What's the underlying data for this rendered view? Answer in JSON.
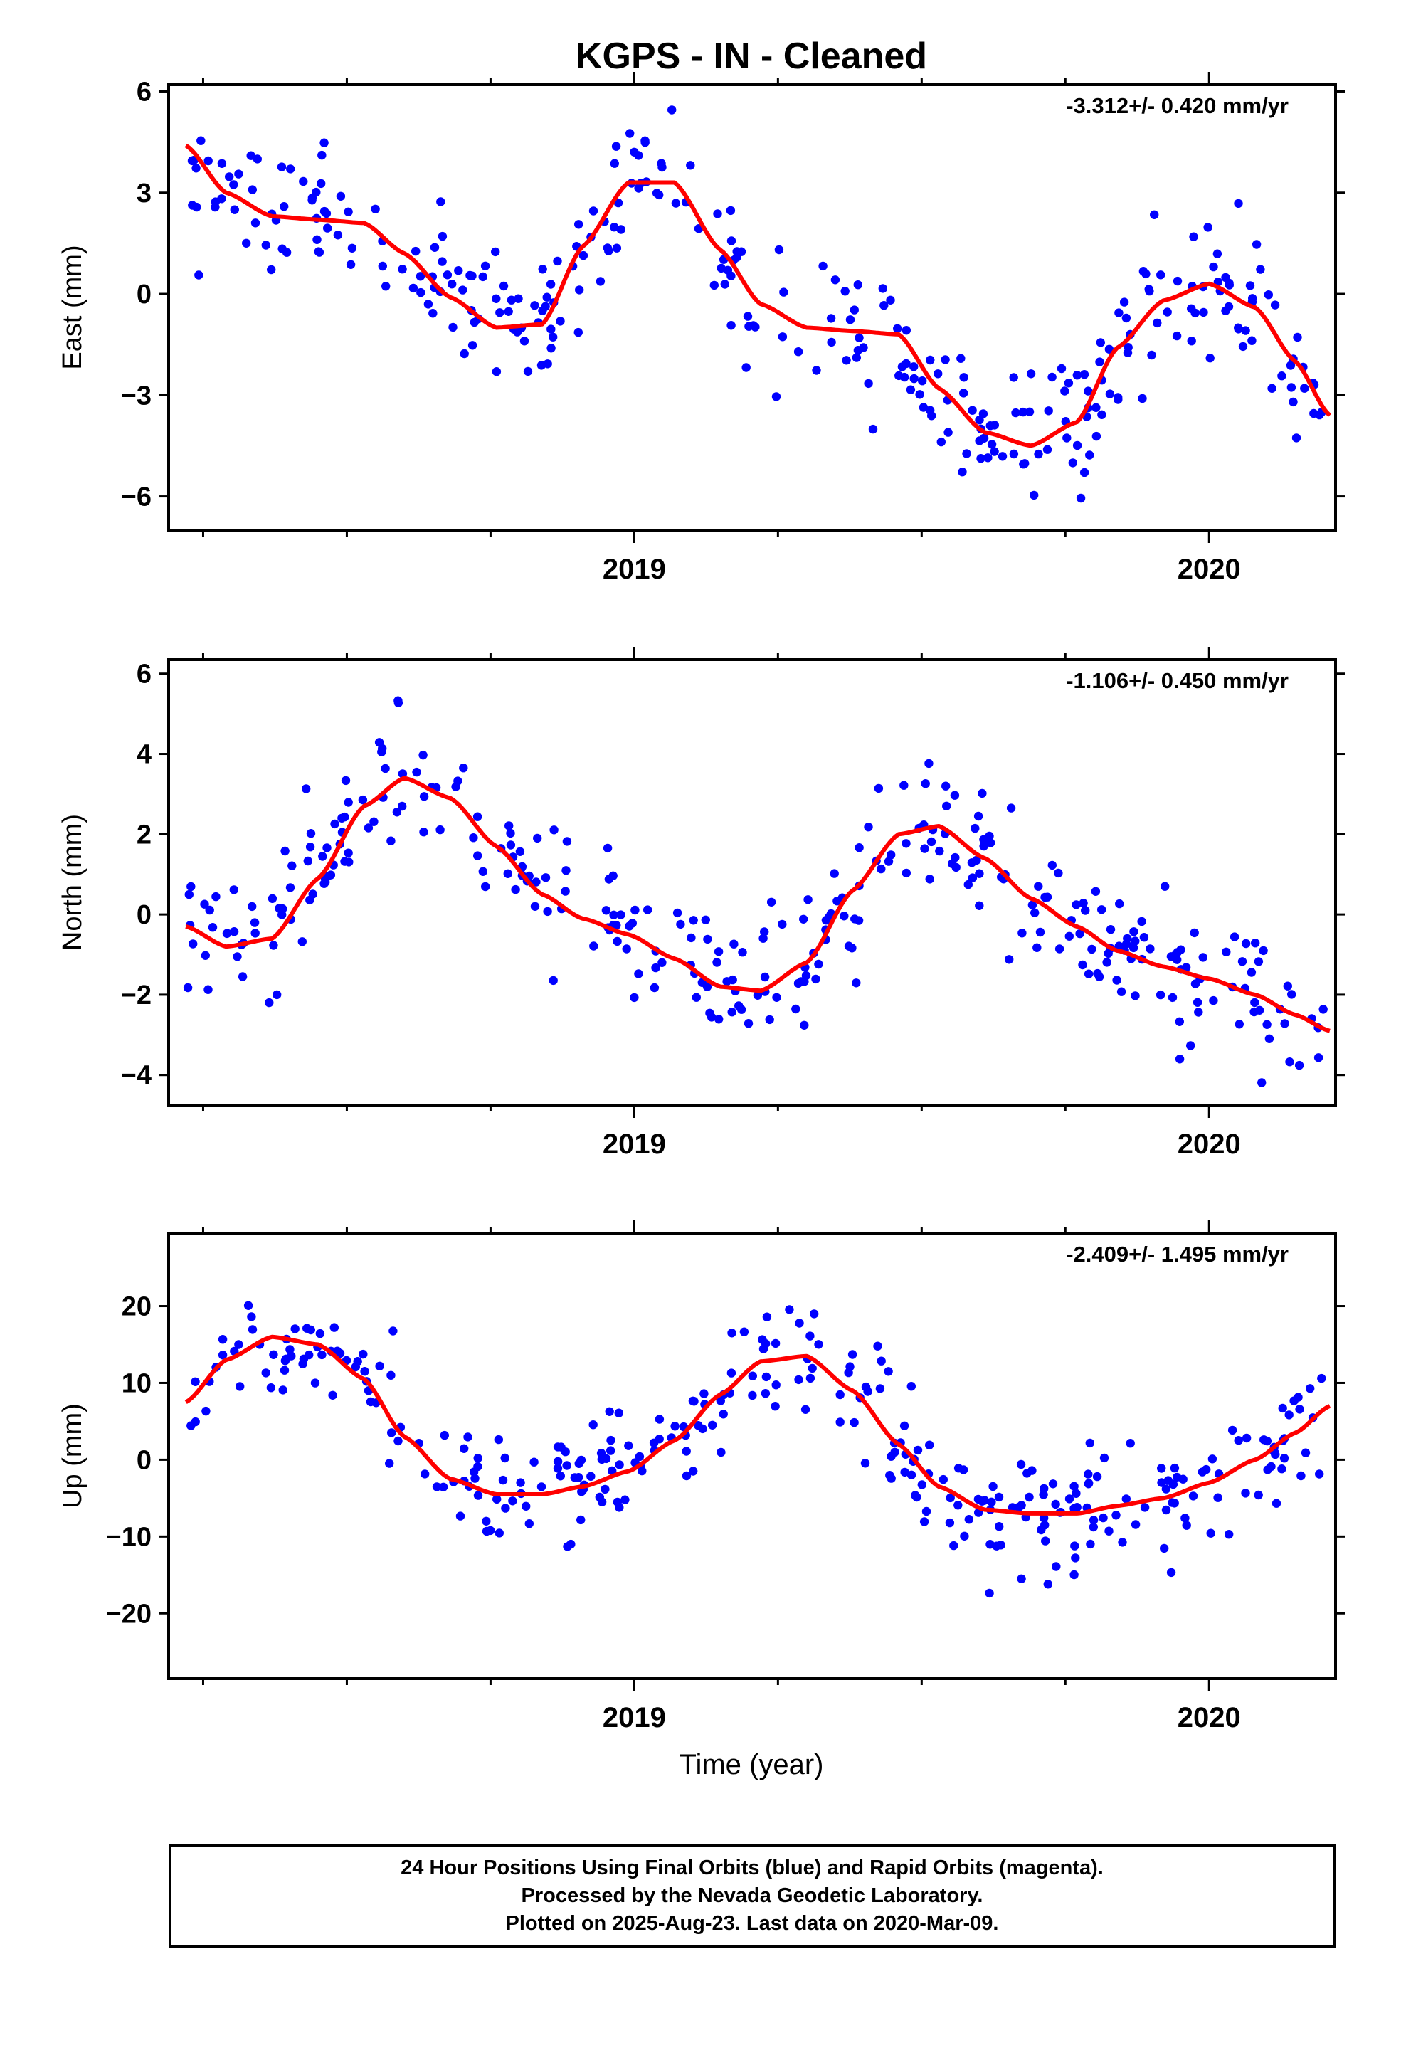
{
  "title": "KGPS  - IN - Cleaned",
  "colors": {
    "points": "#0000ff",
    "fit": "#ff0000",
    "axis": "#000000"
  },
  "chart_data": [
    {
      "type": "scatter",
      "ylabel": "East (mm)",
      "rate_label": "-3.312+/- 0.420 mm/yr",
      "xlim": [
        2018.19,
        2020.22
      ],
      "ylim": [
        -7.0,
        6.2
      ],
      "yticks": [
        -6,
        -3,
        0,
        3,
        6
      ],
      "yticklabels": [
        "−6",
        "−3",
        "0",
        "3",
        "6"
      ],
      "xticks": [
        2019,
        2020
      ],
      "xticklabels": [
        "2019",
        "2020"
      ],
      "series": [
        {
          "x": [
            2018.22,
            2018.29,
            2018.37,
            2018.45,
            2018.53,
            2018.6,
            2018.68,
            2018.76,
            2018.84,
            2018.91,
            2018.99,
            2019.07,
            2019.15,
            2019.22,
            2019.3,
            2019.38,
            2019.46,
            2019.53,
            2019.61,
            2019.69,
            2019.77,
            2019.84,
            2019.92,
            2020.0,
            2020.08,
            2020.15,
            2020.21
          ],
          "y": [
            4.4,
            3.0,
            2.3,
            2.2,
            2.1,
            1.2,
            -0.1,
            -1.0,
            -0.9,
            1.4,
            3.3,
            3.3,
            1.3,
            -0.3,
            -1.0,
            -1.1,
            -1.2,
            -2.8,
            -4.1,
            -4.5,
            -3.8,
            -1.6,
            -0.2,
            0.3,
            -0.4,
            -2.0,
            -3.6
          ]
        }
      ]
    },
    {
      "type": "scatter",
      "ylabel": "North (mm)",
      "rate_label": "-1.106+/- 0.450 mm/yr",
      "xlim": [
        2018.19,
        2020.22
      ],
      "ylim": [
        -4.75,
        6.35
      ],
      "yticks": [
        -4,
        -2,
        0,
        2,
        4,
        6
      ],
      "yticklabels": [
        "−4",
        "−2",
        "0",
        "2",
        "4",
        "6"
      ],
      "xticks": [
        2019,
        2020
      ],
      "xticklabels": [
        "2019",
        "2020"
      ],
      "series": [
        {
          "x": [
            2018.22,
            2018.29,
            2018.37,
            2018.45,
            2018.53,
            2018.6,
            2018.68,
            2018.76,
            2018.84,
            2018.91,
            2018.99,
            2019.07,
            2019.15,
            2019.22,
            2019.3,
            2019.38,
            2019.46,
            2019.53,
            2019.61,
            2019.69,
            2019.77,
            2019.84,
            2019.92,
            2020.0,
            2020.08,
            2020.15,
            2020.21
          ],
          "y": [
            -0.3,
            -0.8,
            -0.6,
            0.9,
            2.7,
            3.4,
            2.9,
            1.7,
            0.5,
            -0.1,
            -0.5,
            -1.1,
            -1.8,
            -1.9,
            -1.2,
            0.6,
            2.0,
            2.2,
            1.4,
            0.4,
            -0.3,
            -0.9,
            -1.3,
            -1.6,
            -2.0,
            -2.5,
            -2.9
          ]
        }
      ]
    },
    {
      "type": "scatter",
      "ylabel": "Up (mm)",
      "xlabel": "Time (year)",
      "rate_label": "-2.409+/- 1.495 mm/yr",
      "xlim": [
        2018.19,
        2020.22
      ],
      "ylim": [
        -28.5,
        29.5
      ],
      "yticks": [
        -20,
        -10,
        0,
        10,
        20
      ],
      "yticklabels": [
        "−20",
        "−10",
        "0",
        "10",
        "20"
      ],
      "xticks": [
        2019,
        2020
      ],
      "xticklabels": [
        "2019",
        "2020"
      ],
      "series": [
        {
          "x": [
            2018.22,
            2018.29,
            2018.37,
            2018.45,
            2018.53,
            2018.6,
            2018.68,
            2018.76,
            2018.84,
            2018.91,
            2018.99,
            2019.07,
            2019.15,
            2019.22,
            2019.3,
            2019.38,
            2019.46,
            2019.53,
            2019.61,
            2019.69,
            2019.77,
            2019.84,
            2019.92,
            2020.0,
            2020.08,
            2020.15,
            2020.21
          ],
          "y": [
            7.5,
            13.0,
            16.0,
            15.0,
            10.5,
            3.0,
            -2.5,
            -4.5,
            -4.5,
            -3.5,
            -1.5,
            2.5,
            8.5,
            12.8,
            13.5,
            9.0,
            2.0,
            -3.5,
            -6.5,
            -7.0,
            -7.0,
            -6.0,
            -5.0,
            -3.0,
            0.0,
            3.5,
            7.0
          ]
        }
      ]
    }
  ],
  "footer": {
    "line1": "24 Hour Positions Using Final Orbits (blue) and Rapid Orbits (magenta).",
    "line2": "Processed by the Nevada Geodetic Laboratory.",
    "line3": "Plotted on 2025-Aug-23. Last data on 2020-Mar-09."
  }
}
